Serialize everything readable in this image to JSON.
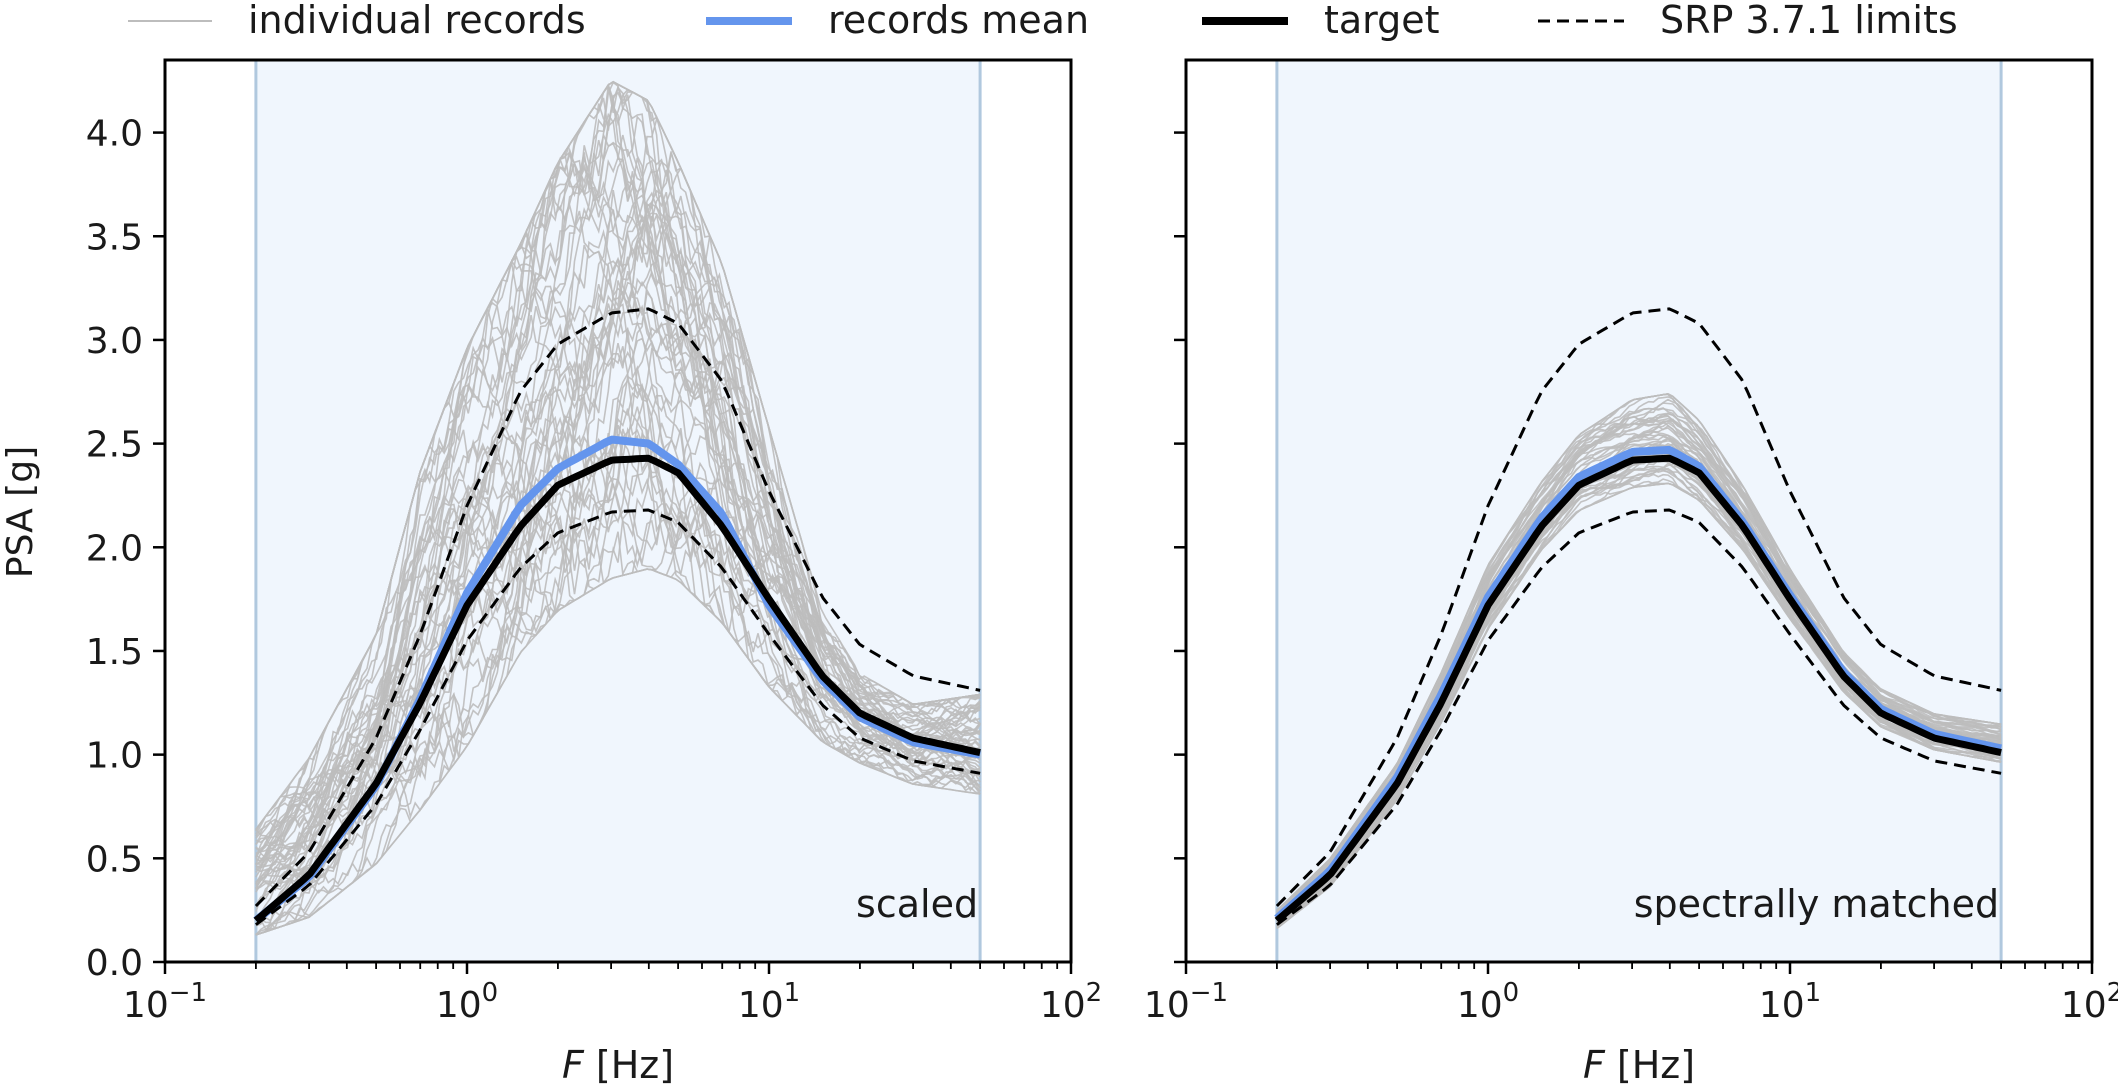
{
  "legend": {
    "placement": "top",
    "entries": [
      {
        "label": "individual records",
        "color": "#bdbdbd",
        "style": "thin-solid"
      },
      {
        "label": "records mean",
        "color": "#6495ed",
        "style": "thick-solid"
      },
      {
        "label": "target",
        "color": "#000000",
        "style": "thick-solid"
      },
      {
        "label": "SRP 3.7.1 limits",
        "color": "#000000",
        "style": "dashed"
      }
    ]
  },
  "shared_y_label": "PSA [g]",
  "colors": {
    "band_fill": "#f0f6fd",
    "band_edge": "#b0c8de",
    "records": "#bdbdbd",
    "mean": "#6495ed",
    "target": "#000000"
  },
  "chart_data": [
    {
      "type": "line",
      "annotation": "scaled",
      "xlabel": "F [Hz]",
      "ylabel": "PSA [g]",
      "xscale": "log",
      "xlim": [
        0.1,
        100
      ],
      "ylim": [
        0.0,
        4.35
      ],
      "x_ticks": [
        "10^-1",
        "10^0",
        "10^1",
        "10^2"
      ],
      "y_ticks": [
        "0.0",
        "0.5",
        "1.0",
        "1.5",
        "2.0",
        "2.5",
        "3.0",
        "3.5",
        "4.0"
      ],
      "shaded_band": [
        0.2,
        50
      ],
      "grid": false,
      "x": [
        0.2,
        0.3,
        0.5,
        0.7,
        1.0,
        1.5,
        2.0,
        3.0,
        4.0,
        5.0,
        7.0,
        10.0,
        15.0,
        20.0,
        30.0,
        50.0
      ],
      "series": [
        {
          "name": "target",
          "values": [
            0.2,
            0.42,
            0.86,
            1.25,
            1.72,
            2.1,
            2.3,
            2.42,
            2.43,
            2.36,
            2.1,
            1.75,
            1.38,
            1.2,
            1.08,
            1.01
          ]
        },
        {
          "name": "records mean",
          "values": [
            0.2,
            0.41,
            0.85,
            1.27,
            1.78,
            2.2,
            2.38,
            2.52,
            2.5,
            2.4,
            2.16,
            1.72,
            1.36,
            1.18,
            1.06,
            1.0
          ]
        },
        {
          "name": "SRP 3.7.1 limits (upper)",
          "values": [
            0.27,
            0.53,
            1.08,
            1.58,
            2.2,
            2.75,
            2.98,
            3.13,
            3.15,
            3.08,
            2.8,
            2.27,
            1.76,
            1.53,
            1.38,
            1.31
          ]
        },
        {
          "name": "SRP 3.7.1 limits (lower)",
          "values": [
            0.18,
            0.37,
            0.76,
            1.12,
            1.55,
            1.9,
            2.07,
            2.17,
            2.18,
            2.12,
            1.9,
            1.58,
            1.24,
            1.08,
            0.97,
            0.91
          ]
        }
      ],
      "individual_records": {
        "count": 60,
        "spread_low": [
          0.12,
          0.2,
          0.45,
          0.7,
          1.0,
          1.45,
          1.65,
          1.8,
          1.85,
          1.8,
          1.6,
          1.3,
          1.05,
          0.95,
          0.85,
          0.8
        ],
        "spread_high": [
          0.65,
          1.0,
          1.6,
          2.4,
          3.0,
          3.5,
          3.9,
          4.3,
          4.2,
          3.9,
          3.4,
          2.6,
          1.7,
          1.4,
          1.25,
          1.3
        ]
      }
    },
    {
      "type": "line",
      "annotation": "spectrally matched",
      "xlabel": "F [Hz]",
      "ylabel": "",
      "xscale": "log",
      "xlim": [
        0.1,
        100
      ],
      "ylim": [
        0.0,
        4.35
      ],
      "x_ticks": [
        "10^-1",
        "10^0",
        "10^1",
        "10^2"
      ],
      "y_ticks": [],
      "shaded_band": [
        0.2,
        50
      ],
      "grid": false,
      "x": [
        0.2,
        0.3,
        0.5,
        0.7,
        1.0,
        1.5,
        2.0,
        3.0,
        4.0,
        5.0,
        7.0,
        10.0,
        15.0,
        20.0,
        30.0,
        50.0
      ],
      "series": [
        {
          "name": "target",
          "values": [
            0.2,
            0.42,
            0.86,
            1.25,
            1.72,
            2.1,
            2.3,
            2.42,
            2.43,
            2.36,
            2.1,
            1.75,
            1.38,
            1.2,
            1.08,
            1.01
          ]
        },
        {
          "name": "records mean",
          "values": [
            0.21,
            0.44,
            0.89,
            1.29,
            1.76,
            2.14,
            2.34,
            2.46,
            2.47,
            2.39,
            2.12,
            1.77,
            1.4,
            1.22,
            1.1,
            1.03
          ]
        },
        {
          "name": "SRP 3.7.1 limits (upper)",
          "values": [
            0.27,
            0.53,
            1.08,
            1.58,
            2.2,
            2.75,
            2.98,
            3.13,
            3.15,
            3.08,
            2.8,
            2.27,
            1.76,
            1.53,
            1.38,
            1.31
          ]
        },
        {
          "name": "SRP 3.7.1 limits (lower)",
          "values": [
            0.18,
            0.37,
            0.76,
            1.12,
            1.55,
            1.9,
            2.07,
            2.17,
            2.18,
            2.12,
            1.9,
            1.58,
            1.24,
            1.08,
            0.97,
            0.91
          ]
        }
      ],
      "individual_records": {
        "count": 60,
        "spread_low": [
          0.16,
          0.36,
          0.78,
          1.15,
          1.6,
          1.98,
          2.17,
          2.28,
          2.3,
          2.22,
          1.98,
          1.65,
          1.3,
          1.13,
          1.02,
          0.96
        ],
        "spread_high": [
          0.25,
          0.5,
          0.96,
          1.4,
          1.92,
          2.32,
          2.55,
          2.72,
          2.75,
          2.62,
          2.3,
          1.9,
          1.5,
          1.32,
          1.2,
          1.15
        ]
      }
    }
  ]
}
